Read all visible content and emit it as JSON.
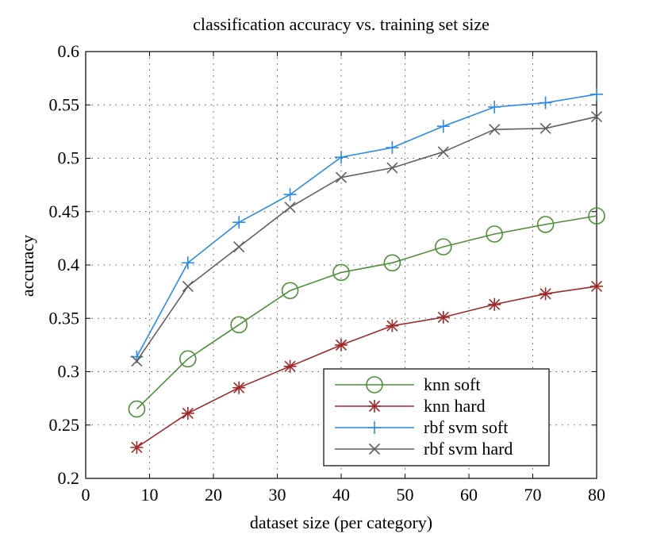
{
  "chart_data": {
    "type": "line",
    "title": "classification accuracy vs. training set size",
    "xlabel": "dataset size (per category)",
    "ylabel": "accuracy",
    "xlim": [
      0,
      80
    ],
    "ylim": [
      0.2,
      0.6
    ],
    "xticks": [
      0,
      10,
      20,
      30,
      40,
      50,
      60,
      70,
      80
    ],
    "xtick_labels": [
      "0",
      "10",
      "20",
      "30",
      "40",
      "50",
      "60",
      "70",
      "80"
    ],
    "yticks": [
      0.2,
      0.25,
      0.3,
      0.35,
      0.4,
      0.45,
      0.5,
      0.55,
      0.6
    ],
    "ytick_labels": [
      "0.2",
      "0.25",
      "0.3",
      "0.35",
      "0.4",
      "0.45",
      "0.5",
      "0.55",
      "0.6"
    ],
    "grid": true,
    "legend_position": "bottom-right",
    "x": [
      8,
      16,
      24,
      32,
      40,
      48,
      56,
      64,
      72,
      80
    ],
    "series": [
      {
        "name": "knn soft",
        "color": "#4f8f3a",
        "marker": "circle",
        "values": [
          0.265,
          0.312,
          0.344,
          0.376,
          0.393,
          0.402,
          0.417,
          0.429,
          0.438,
          0.446
        ]
      },
      {
        "name": "knn hard",
        "color": "#9e2a2b",
        "marker": "asterisk",
        "values": [
          0.229,
          0.261,
          0.285,
          0.305,
          0.325,
          0.343,
          0.351,
          0.363,
          0.373,
          0.38
        ]
      },
      {
        "name": "rbf svm soft",
        "color": "#2b8be8",
        "marker": "plus",
        "values": [
          0.314,
          0.402,
          0.44,
          0.466,
          0.501,
          0.51,
          0.53,
          0.548,
          0.552,
          0.56
        ]
      },
      {
        "name": "rbf svm hard",
        "color": "#606060",
        "marker": "x",
        "values": [
          0.31,
          0.38,
          0.417,
          0.454,
          0.482,
          0.491,
          0.506,
          0.527,
          0.528,
          0.539
        ]
      }
    ]
  }
}
